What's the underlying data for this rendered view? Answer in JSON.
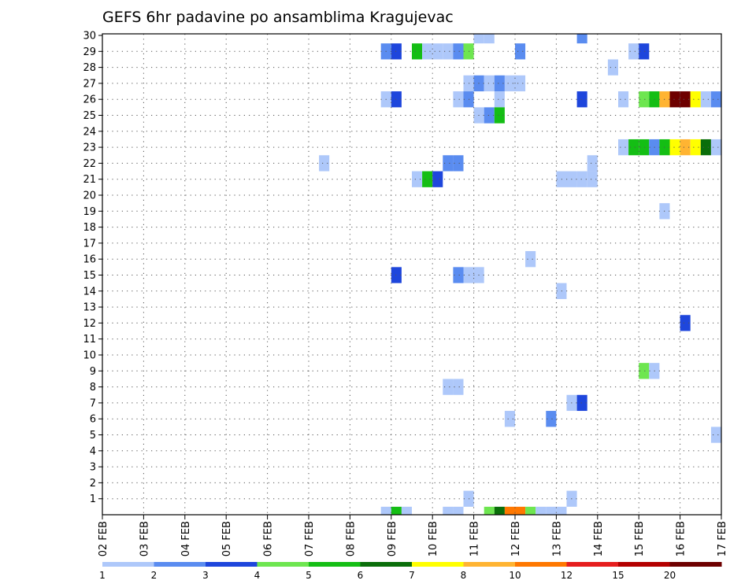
{
  "chart_data": {
    "type": "heatmap",
    "title": "GEFS 6hr padavine po ansamblima Kragujevac",
    "x_tick_labels": [
      "02 FEB",
      "03 FEB",
      "04 FEB",
      "05 FEB",
      "06 FEB",
      "07 FEB",
      "08 FEB",
      "09 FEB",
      "10 FEB",
      "11 FEB",
      "12 FEB",
      "13 FEB",
      "14 FEB",
      "15 FEB",
      "16 FEB",
      "17 FEB"
    ],
    "x_range_days": [
      0,
      15
    ],
    "y_range": [
      0,
      30
    ],
    "y_tick_labels": [
      "1",
      "2",
      "3",
      "4",
      "5",
      "6",
      "7",
      "8",
      "9",
      "10",
      "11",
      "12",
      "13",
      "14",
      "15",
      "16",
      "17",
      "18",
      "19",
      "20",
      "21",
      "22",
      "23",
      "24",
      "25",
      "26",
      "27",
      "28",
      "29",
      "30"
    ],
    "grid": true,
    "legend": {
      "placement": "bottom",
      "colors": [
        "#aec8fa",
        "#5a8cf0",
        "#1e46dc",
        "#6ee650",
        "#14be14",
        "#0a6e0a",
        "#ffff00",
        "#ffb432",
        "#ff7800",
        "#e61e1e",
        "#b40000",
        "#6e0000"
      ],
      "labels": [
        "1",
        "2",
        "3",
        "4",
        "5",
        "6",
        "7",
        "8",
        "10",
        "12",
        "15",
        "20"
      ]
    },
    "cells_note": "each cell: [x start in days after 02 FEB, y member row, colour class index]",
    "cells": [
      [
        9.0,
        30,
        0
      ],
      [
        9.25,
        30,
        0
      ],
      [
        11.5,
        30,
        1
      ],
      [
        6.75,
        29,
        1
      ],
      [
        7.0,
        29,
        2
      ],
      [
        7.5,
        29,
        4
      ],
      [
        7.75,
        29,
        0
      ],
      [
        8.0,
        29,
        0
      ],
      [
        8.25,
        29,
        0
      ],
      [
        8.5,
        29,
        1
      ],
      [
        8.75,
        29,
        3
      ],
      [
        10.0,
        29,
        1
      ],
      [
        12.75,
        29,
        0
      ],
      [
        13.0,
        29,
        2
      ],
      [
        12.25,
        28,
        0
      ],
      [
        8.75,
        27,
        0
      ],
      [
        9.0,
        27,
        1
      ],
      [
        9.25,
        27,
        0
      ],
      [
        9.5,
        27,
        1
      ],
      [
        9.75,
        27,
        0
      ],
      [
        10.0,
        27,
        0
      ],
      [
        6.75,
        26,
        0
      ],
      [
        7.0,
        26,
        2
      ],
      [
        8.5,
        26,
        0
      ],
      [
        8.75,
        26,
        1
      ],
      [
        9.5,
        26,
        0
      ],
      [
        11.5,
        26,
        2
      ],
      [
        12.5,
        26,
        0
      ],
      [
        13.0,
        26,
        3
      ],
      [
        13.25,
        26,
        4
      ],
      [
        13.5,
        26,
        7
      ],
      [
        13.75,
        26,
        11
      ],
      [
        14.0,
        26,
        11
      ],
      [
        14.25,
        26,
        6
      ],
      [
        14.5,
        26,
        0
      ],
      [
        14.75,
        26,
        1
      ],
      [
        15.0,
        26,
        0
      ],
      [
        9.0,
        25,
        0
      ],
      [
        9.25,
        25,
        1
      ],
      [
        9.5,
        25,
        4
      ],
      [
        12.5,
        23,
        0
      ],
      [
        12.75,
        23,
        4
      ],
      [
        13.0,
        23,
        4
      ],
      [
        13.25,
        23,
        1
      ],
      [
        13.5,
        23,
        4
      ],
      [
        13.75,
        23,
        6
      ],
      [
        14.0,
        23,
        7
      ],
      [
        14.25,
        23,
        6
      ],
      [
        14.5,
        23,
        5
      ],
      [
        14.75,
        23,
        0
      ],
      [
        5.25,
        22,
        0
      ],
      [
        8.25,
        22,
        1
      ],
      [
        8.5,
        22,
        1
      ],
      [
        11.75,
        22,
        0
      ],
      [
        7.5,
        21,
        0
      ],
      [
        7.75,
        21,
        4
      ],
      [
        8.0,
        21,
        2
      ],
      [
        11.0,
        21,
        0
      ],
      [
        11.25,
        21,
        0
      ],
      [
        11.5,
        21,
        0
      ],
      [
        11.75,
        21,
        0
      ],
      [
        13.5,
        19,
        0
      ],
      [
        10.25,
        16,
        0
      ],
      [
        7.0,
        15,
        2
      ],
      [
        8.5,
        15,
        1
      ],
      [
        8.75,
        15,
        0
      ],
      [
        9.0,
        15,
        0
      ],
      [
        11.0,
        14,
        0
      ],
      [
        14.0,
        12,
        2
      ],
      [
        13.0,
        9,
        3
      ],
      [
        13.25,
        9,
        0
      ],
      [
        8.25,
        8,
        0
      ],
      [
        8.5,
        8,
        0
      ],
      [
        11.25,
        7,
        0
      ],
      [
        11.5,
        7,
        2
      ],
      [
        9.75,
        6,
        0
      ],
      [
        10.75,
        6,
        1
      ],
      [
        14.75,
        5,
        0
      ],
      [
        8.75,
        1,
        0
      ],
      [
        11.25,
        1,
        0
      ],
      [
        6.75,
        0,
        0
      ],
      [
        7.0,
        0,
        4
      ],
      [
        7.25,
        0,
        0
      ],
      [
        8.25,
        0,
        0
      ],
      [
        8.5,
        0,
        0
      ],
      [
        9.25,
        0,
        3
      ],
      [
        9.5,
        0,
        5
      ],
      [
        9.75,
        0,
        8
      ],
      [
        10.0,
        0,
        8
      ],
      [
        10.25,
        0,
        3
      ],
      [
        10.5,
        0,
        0
      ],
      [
        10.75,
        0,
        0
      ],
      [
        11.0,
        0,
        0
      ]
    ]
  }
}
